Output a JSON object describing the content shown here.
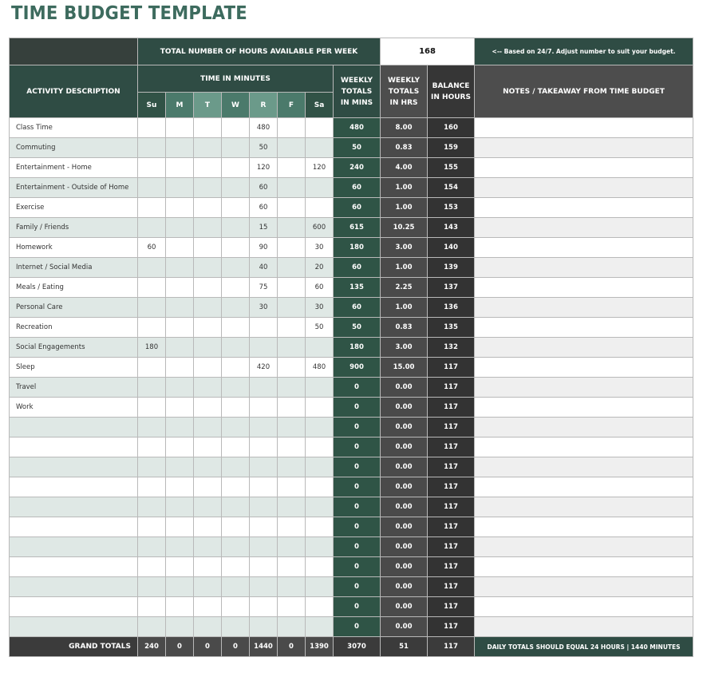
{
  "title": "TIME BUDGET TEMPLATE",
  "header": {
    "total_hours_label": "TOTAL NUMBER OF HOURS AVAILABLE PER WEEK",
    "total_hours_value": "168",
    "total_hours_note": "<-- Based on 24/7.  Adjust number to suit your budget.",
    "activity_label": "ACTIVITY DESCRIPTION",
    "time_in_minutes_label": "TIME IN MINUTES",
    "days": [
      "Su",
      "M",
      "T",
      "W",
      "R",
      "F",
      "Sa"
    ],
    "weekly_mins_label": "WEEKLY TOTALS IN MINS",
    "weekly_hrs_label": "WEEKLY TOTALS IN HRS",
    "balance_label": "BALANCE IN HOURS",
    "notes_label": "NOTES / TAKEAWAY FROM TIME BUDGET"
  },
  "rows": [
    {
      "activity": "Class Time",
      "days": [
        "",
        "",
        "",
        "",
        "480",
        "",
        ""
      ],
      "mins": "480",
      "hrs": "8.00",
      "balance": "160",
      "note": ""
    },
    {
      "activity": "Commuting",
      "days": [
        "",
        "",
        "",
        "",
        "50",
        "",
        ""
      ],
      "mins": "50",
      "hrs": "0.83",
      "balance": "159",
      "note": ""
    },
    {
      "activity": "Entertainment - Home",
      "days": [
        "",
        "",
        "",
        "",
        "120",
        "",
        "120"
      ],
      "mins": "240",
      "hrs": "4.00",
      "balance": "155",
      "note": ""
    },
    {
      "activity": "Entertainment - Outside of Home",
      "days": [
        "",
        "",
        "",
        "",
        "60",
        "",
        ""
      ],
      "mins": "60",
      "hrs": "1.00",
      "balance": "154",
      "note": ""
    },
    {
      "activity": "Exercise",
      "days": [
        "",
        "",
        "",
        "",
        "60",
        "",
        ""
      ],
      "mins": "60",
      "hrs": "1.00",
      "balance": "153",
      "note": ""
    },
    {
      "activity": "Family / Friends",
      "days": [
        "",
        "",
        "",
        "",
        "15",
        "",
        "600"
      ],
      "mins": "615",
      "hrs": "10.25",
      "balance": "143",
      "note": ""
    },
    {
      "activity": "Homework",
      "days": [
        "60",
        "",
        "",
        "",
        "90",
        "",
        "30"
      ],
      "mins": "180",
      "hrs": "3.00",
      "balance": "140",
      "note": ""
    },
    {
      "activity": "Internet / Social Media",
      "days": [
        "",
        "",
        "",
        "",
        "40",
        "",
        "20"
      ],
      "mins": "60",
      "hrs": "1.00",
      "balance": "139",
      "note": ""
    },
    {
      "activity": "Meals / Eating",
      "days": [
        "",
        "",
        "",
        "",
        "75",
        "",
        "60"
      ],
      "mins": "135",
      "hrs": "2.25",
      "balance": "137",
      "note": ""
    },
    {
      "activity": "Personal Care",
      "days": [
        "",
        "",
        "",
        "",
        "30",
        "",
        "30"
      ],
      "mins": "60",
      "hrs": "1.00",
      "balance": "136",
      "note": ""
    },
    {
      "activity": "Recreation",
      "days": [
        "",
        "",
        "",
        "",
        "",
        "",
        "50"
      ],
      "mins": "50",
      "hrs": "0.83",
      "balance": "135",
      "note": ""
    },
    {
      "activity": "Social Engagements",
      "days": [
        "180",
        "",
        "",
        "",
        "",
        "",
        ""
      ],
      "mins": "180",
      "hrs": "3.00",
      "balance": "132",
      "note": ""
    },
    {
      "activity": "Sleep",
      "days": [
        "",
        "",
        "",
        "",
        "420",
        "",
        "480"
      ],
      "mins": "900",
      "hrs": "15.00",
      "balance": "117",
      "note": ""
    },
    {
      "activity": "Travel",
      "days": [
        "",
        "",
        "",
        "",
        "",
        "",
        ""
      ],
      "mins": "0",
      "hrs": "0.00",
      "balance": "117",
      "note": ""
    },
    {
      "activity": "Work",
      "days": [
        "",
        "",
        "",
        "",
        "",
        "",
        ""
      ],
      "mins": "0",
      "hrs": "0.00",
      "balance": "117",
      "note": ""
    },
    {
      "activity": "",
      "days": [
        "",
        "",
        "",
        "",
        "",
        "",
        ""
      ],
      "mins": "0",
      "hrs": "0.00",
      "balance": "117",
      "note": ""
    },
    {
      "activity": "",
      "days": [
        "",
        "",
        "",
        "",
        "",
        "",
        ""
      ],
      "mins": "0",
      "hrs": "0.00",
      "balance": "117",
      "note": ""
    },
    {
      "activity": "",
      "days": [
        "",
        "",
        "",
        "",
        "",
        "",
        ""
      ],
      "mins": "0",
      "hrs": "0.00",
      "balance": "117",
      "note": ""
    },
    {
      "activity": "",
      "days": [
        "",
        "",
        "",
        "",
        "",
        "",
        ""
      ],
      "mins": "0",
      "hrs": "0.00",
      "balance": "117",
      "note": ""
    },
    {
      "activity": "",
      "days": [
        "",
        "",
        "",
        "",
        "",
        "",
        ""
      ],
      "mins": "0",
      "hrs": "0.00",
      "balance": "117",
      "note": ""
    },
    {
      "activity": "",
      "days": [
        "",
        "",
        "",
        "",
        "",
        "",
        ""
      ],
      "mins": "0",
      "hrs": "0.00",
      "balance": "117",
      "note": ""
    },
    {
      "activity": "",
      "days": [
        "",
        "",
        "",
        "",
        "",
        "",
        ""
      ],
      "mins": "0",
      "hrs": "0.00",
      "balance": "117",
      "note": ""
    },
    {
      "activity": "",
      "days": [
        "",
        "",
        "",
        "",
        "",
        "",
        ""
      ],
      "mins": "0",
      "hrs": "0.00",
      "balance": "117",
      "note": ""
    },
    {
      "activity": "",
      "days": [
        "",
        "",
        "",
        "",
        "",
        "",
        ""
      ],
      "mins": "0",
      "hrs": "0.00",
      "balance": "117",
      "note": ""
    },
    {
      "activity": "",
      "days": [
        "",
        "",
        "",
        "",
        "",
        "",
        ""
      ],
      "mins": "0",
      "hrs": "0.00",
      "balance": "117",
      "note": ""
    },
    {
      "activity": "",
      "days": [
        "",
        "",
        "",
        "",
        "",
        "",
        ""
      ],
      "mins": "0",
      "hrs": "0.00",
      "balance": "117",
      "note": ""
    }
  ],
  "grand_totals": {
    "label": "GRAND TOTALS",
    "days": [
      "240",
      "0",
      "0",
      "0",
      "1440",
      "0",
      "1390"
    ],
    "mins": "3070",
    "hrs": "51",
    "balance": "117",
    "note": "DAILY TOTALS SHOULD EQUAL 24 HOURS  |  1440 MINUTES"
  },
  "colors": {
    "title": "#3d6b5e",
    "header_green": "#2f4c44",
    "weekly_mins": "#2f5446",
    "weekly_hrs": "#4a4a4a",
    "balance": "#333333",
    "stripe": "#dfe8e5"
  }
}
